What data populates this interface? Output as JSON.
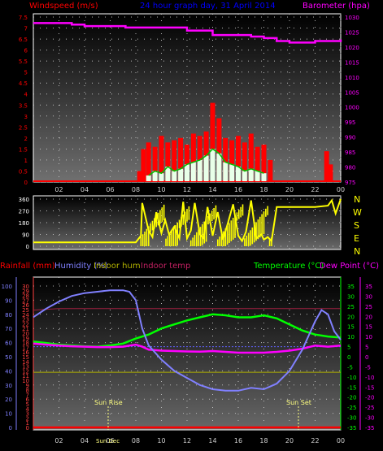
{
  "header": {
    "wind_label": "Windspeed (m/s)",
    "title": "24 hour graph day, 31 April 2014",
    "baro_label": "Barometer (hpa)"
  },
  "lower_header": {
    "rain_label": "Rainfall (mm)",
    "humidity_label": "Humidity (%)",
    "indoor_hum_label": "Indoor hum",
    "indoor_temp_label": "Indoor temp",
    "temperature_label": "Temperature (°C)",
    "dewpoint_label": "Dew Point (°C)"
  },
  "sun": {
    "rise_label": "Sun Rise",
    "set_label": "Sun Set",
    "stamp": "Sun Dec"
  },
  "compass": [
    "N",
    "W",
    "S",
    "E",
    "N"
  ],
  "colors": {
    "wind": "#ff0000",
    "gust_bar": "#ff0000",
    "avg": "#00c000",
    "barometer": "#ff00ff",
    "direction": "#ffff00",
    "humidity": "#8080ff",
    "temperature": "#00ff00",
    "dewpoint": "#ff00ff",
    "rain": "#ff0000",
    "indoor_hum": "#b0b000",
    "indoor_temp": "#a02040",
    "title": "#0000ff"
  },
  "chart_data": [
    {
      "type": "bar",
      "name": "wind_baro",
      "x_ticks": [
        "02",
        "04",
        "06",
        "08",
        "10",
        "12",
        "14",
        "16",
        "18",
        "20",
        "22",
        "00"
      ],
      "y_left": {
        "label": "Windspeed (m/s)",
        "ylim": [
          0,
          7.5
        ],
        "ticks": [
          "0",
          "0.5",
          "1",
          "1.5",
          "2",
          "2.5",
          "3",
          "3.5",
          "4",
          "4.5",
          "5",
          "5.5",
          "6",
          "6.5",
          "7",
          "7.5"
        ]
      },
      "y_right": {
        "label": "Barometer (hpa)",
        "ylim": [
          975,
          1030
        ],
        "ticks": [
          "975",
          "980",
          "985",
          "990",
          "995",
          "1000",
          "1005",
          "1010",
          "1015",
          "1020",
          "1025",
          "1030"
        ]
      },
      "series": [
        {
          "name": "Barometer",
          "x": [
            0,
            2,
            3,
            4,
            6,
            7,
            7.2,
            8.5,
            12,
            14,
            15,
            17,
            18,
            19,
            20,
            22,
            23,
            24
          ],
          "values": [
            1028,
            1028,
            1027.5,
            1027,
            1027,
            1027,
            1026.5,
            1026.5,
            1025.5,
            1024,
            1024,
            1023.5,
            1023,
            1022,
            1021.5,
            1022,
            1022,
            1022.5
          ]
        },
        {
          "name": "Gust",
          "x": [
            8.3,
            8.6,
            9,
            9.5,
            10,
            10.5,
            11,
            11.5,
            12,
            12.5,
            13,
            13.5,
            14,
            14.5,
            15,
            15.5,
            16,
            16.5,
            17,
            17.5,
            18,
            18.5,
            22.9,
            23.2
          ],
          "values": [
            0.5,
            1.5,
            1.8,
            1.6,
            2.1,
            1.8,
            1.9,
            2.0,
            1.7,
            2.2,
            2.1,
            2.3,
            3.6,
            2.9,
            2.0,
            1.9,
            2.1,
            1.8,
            2.2,
            1.6,
            1.7,
            1.0,
            1.4,
            0.8
          ]
        },
        {
          "name": "Average",
          "x": [
            9,
            9.5,
            10,
            10.5,
            11,
            11.5,
            12,
            12.5,
            13,
            13.5,
            14,
            14.5,
            15,
            15.5,
            16,
            16.5,
            17,
            17.5,
            18
          ],
          "values": [
            0.3,
            0.5,
            0.4,
            0.7,
            0.5,
            0.6,
            0.8,
            0.9,
            1.0,
            1.2,
            1.5,
            1.3,
            0.9,
            0.8,
            0.7,
            0.5,
            0.6,
            0.5,
            0.4
          ]
        }
      ]
    },
    {
      "type": "line",
      "name": "wind_direction",
      "ylim": [
        0,
        360
      ],
      "y_ticks": [
        "0",
        "90",
        "180",
        "270",
        "360"
      ],
      "series": [
        {
          "name": "Direction",
          "x": [
            0,
            7.9,
            8,
            8.4,
            8.5,
            9,
            9.3,
            9.6,
            10,
            10.3,
            10.6,
            11,
            11.4,
            11.7,
            12,
            12.3,
            12.6,
            13,
            13.3,
            13.6,
            14,
            14.4,
            14.8,
            15.2,
            15.6,
            16,
            16.3,
            16.6,
            17,
            17.4,
            17.8,
            18,
            18.3,
            18.6,
            19,
            19.5,
            20,
            20.5,
            21,
            21.5,
            22,
            23,
            23.3,
            23.6,
            24
          ],
          "values": [
            30,
            30,
            30,
            80,
            330,
            120,
            70,
            260,
            100,
            200,
            90,
            150,
            60,
            340,
            60,
            120,
            330,
            90,
            60,
            300,
            80,
            260,
            50,
            180,
            320,
            80,
            40,
            110,
            350,
            60,
            90,
            50,
            70,
            40,
            300,
            300,
            300,
            300,
            300,
            300,
            300,
            310,
            350,
            250,
            360
          ]
        }
      ]
    },
    {
      "type": "line",
      "name": "temp_hum",
      "x_ticks": [
        "02",
        "04",
        "06",
        "08",
        "10",
        "12",
        "14",
        "16",
        "18",
        "20",
        "22",
        "00"
      ],
      "y_left_rain": {
        "ticks": [
          "0",
          "1",
          "2",
          "3",
          "4",
          "5",
          "6",
          "7",
          "8",
          "9",
          "10",
          "11",
          "12",
          "13",
          "14",
          "15",
          "16",
          "17",
          "18",
          "19",
          "20",
          "21",
          "22",
          "23",
          "24",
          "25",
          "26",
          "27",
          "28",
          "29",
          "30"
        ],
        "ylim": [
          0,
          30
        ]
      },
      "y_left_hum": {
        "ticks": [
          "0",
          "10",
          "20",
          "30",
          "40",
          "50",
          "60",
          "70",
          "80",
          "90",
          "100"
        ],
        "ylim": [
          0,
          100
        ]
      },
      "y_right_temp": {
        "ticks": [
          "-35",
          "-30",
          "-25",
          "-20",
          "-15",
          "-10",
          "-5",
          "0",
          "5",
          "10",
          "15",
          "20",
          "25",
          "30",
          "35"
        ],
        "ylim": [
          -35,
          35
        ]
      },
      "series": [
        {
          "name": "Humidity",
          "x": [
            0,
            1,
            2,
            3,
            4,
            5,
            6,
            7,
            7.5,
            8,
            8.5,
            9,
            10,
            11,
            12,
            13,
            14,
            15,
            16,
            17,
            18,
            19,
            20,
            21,
            22,
            22.5,
            23,
            23.5,
            24
          ],
          "values": [
            78,
            84,
            89,
            93,
            95,
            96,
            97,
            97,
            96,
            90,
            70,
            58,
            48,
            40,
            35,
            30,
            27,
            26,
            26,
            28,
            27,
            31,
            40,
            55,
            75,
            83,
            80,
            68,
            62
          ]
        },
        {
          "name": "Temperature",
          "x": [
            0,
            1,
            2,
            3,
            4,
            5,
            6,
            7,
            8,
            9,
            10,
            11,
            12,
            13,
            14,
            15,
            16,
            17,
            18,
            19,
            20,
            21,
            22,
            23,
            24
          ],
          "values": [
            7.5,
            6.8,
            6.0,
            5.6,
            5.2,
            5.0,
            5.6,
            6.5,
            9.0,
            11.0,
            14.0,
            16.0,
            18.0,
            19.5,
            21.0,
            20.5,
            19.5,
            19.5,
            20.5,
            19.0,
            16.0,
            13.0,
            11.0,
            10.0,
            9.5
          ]
        },
        {
          "name": "Dew Point",
          "x": [
            0,
            1,
            2,
            3,
            4,
            5,
            6,
            7,
            7.5,
            8,
            8.5,
            9,
            10,
            11,
            12,
            13,
            14,
            15,
            16,
            17,
            18,
            19,
            20,
            21,
            22,
            23,
            24
          ],
          "values": [
            6.5,
            6,
            5.5,
            5.2,
            5,
            4.8,
            4.8,
            5,
            5.5,
            6,
            5,
            3.5,
            3,
            2.8,
            2.6,
            2.5,
            2.8,
            2.4,
            2,
            2,
            2,
            2.4,
            3,
            4,
            5.5,
            5.0,
            5.5
          ]
        },
        {
          "name": "Indoor temp",
          "x": [
            0,
            2,
            4,
            6,
            8,
            10,
            12,
            14,
            16,
            18,
            20,
            22,
            24
          ],
          "values": [
            83,
            84,
            84,
            84,
            84,
            84,
            84,
            84,
            84,
            84,
            84,
            84,
            84
          ]
        },
        {
          "name": "Indoor hum",
          "x": [
            0,
            24
          ],
          "values": [
            39,
            39
          ]
        },
        {
          "name": "Rainfall",
          "x": [
            0,
            24
          ],
          "values": [
            0,
            0
          ]
        }
      ]
    }
  ]
}
